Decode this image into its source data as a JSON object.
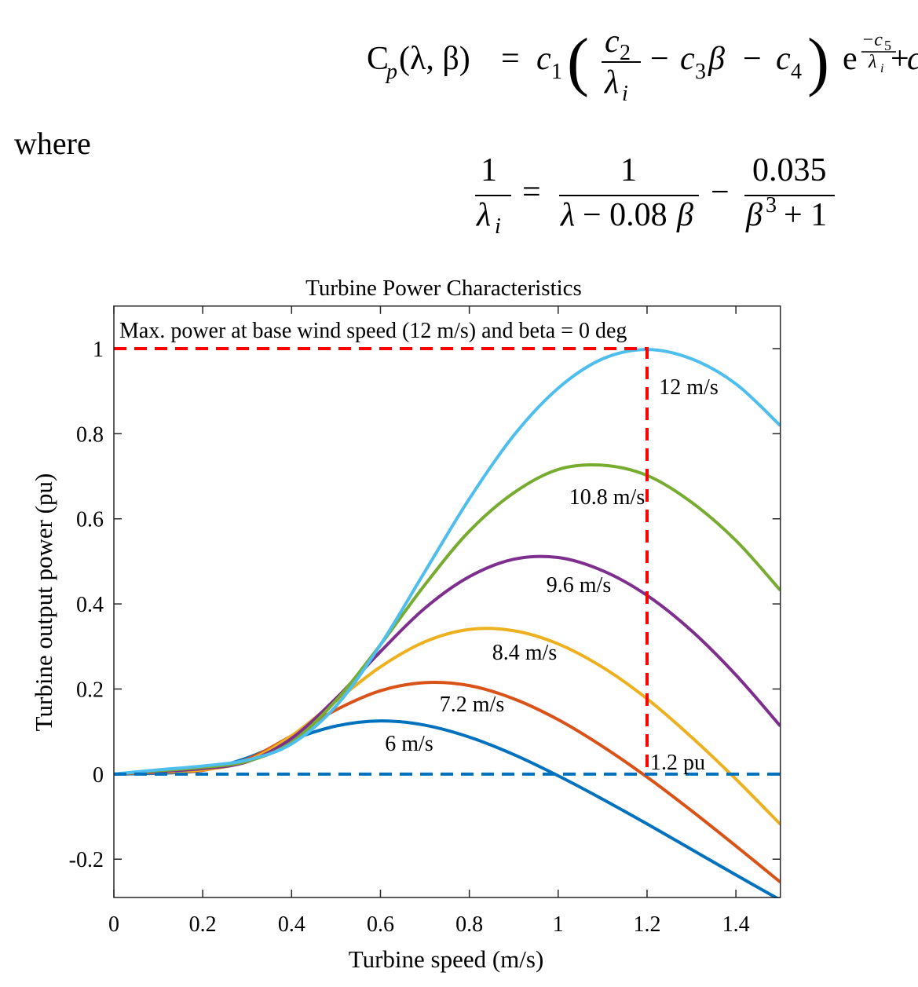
{
  "equation_1": {
    "parts": [
      "C",
      "p",
      "(λ, β)",
      "=",
      "c",
      "1",
      "(",
      "c",
      "2",
      "λ",
      "i",
      "−",
      "c",
      "3",
      "β",
      "−",
      "c",
      "4",
      ")",
      "e",
      "−c",
      "5",
      "λ",
      "i",
      "+",
      "c"
    ]
  },
  "where": "where",
  "equation_2": {
    "parts": [
      "1",
      "λ",
      "i",
      "=",
      "1",
      "λ",
      "− 0.08",
      "β",
      "−",
      "0.035",
      "β",
      "3",
      "+ 1"
    ]
  },
  "chart_data": {
    "type": "line",
    "title": "Turbine Power Characteristics",
    "x_label": "Turbine speed (m/s)",
    "y_label": "Turbine output power (pu)",
    "x": [
      0,
      0.1,
      0.2,
      0.3,
      0.4,
      0.5,
      0.6,
      0.7,
      0.8,
      0.9,
      1.0,
      1.1,
      1.2,
      1.3,
      1.4,
      1.5
    ],
    "series": [
      {
        "name": "6 m/s",
        "color": "#0072bd",
        "values": [
          0,
          0.002,
          0.009,
          0.038,
          0.081,
          0.113,
          0.125,
          0.115,
          0.087,
          0.046,
          -0.004,
          -0.059,
          -0.117,
          -0.177,
          -0.237,
          -0.296
        ]
      },
      {
        "name": "7.2 m/s",
        "color": "#d95319",
        "values": [
          0,
          0.004,
          0.009,
          0.035,
          0.09,
          0.151,
          0.196,
          0.215,
          0.208,
          0.177,
          0.128,
          0.065,
          -0.007,
          -0.086,
          -0.169,
          -0.254
        ]
      },
      {
        "name": "8.4 m/s",
        "color": "#edb120",
        "values": [
          0,
          0.005,
          0.01,
          0.031,
          0.09,
          0.172,
          0.252,
          0.311,
          0.34,
          0.337,
          0.306,
          0.251,
          0.177,
          0.087,
          -0.012,
          -0.118
        ]
      },
      {
        "name": "9.6 m/s",
        "color": "#7e2f8e",
        "values": [
          0,
          0.006,
          0.013,
          0.029,
          0.084,
          0.178,
          0.288,
          0.39,
          0.464,
          0.505,
          0.509,
          0.478,
          0.42,
          0.337,
          0.233,
          0.113
        ]
      },
      {
        "name": "10.8 m/s",
        "color": "#77ac30",
        "values": [
          0,
          0.008,
          0.016,
          0.03,
          0.075,
          0.173,
          0.304,
          0.445,
          0.571,
          0.661,
          0.716,
          0.726,
          0.702,
          0.639,
          0.549,
          0.432
        ]
      },
      {
        "name": "12 m/s",
        "color": "#4dbeee",
        "values": [
          0,
          0.01,
          0.019,
          0.033,
          0.071,
          0.16,
          0.304,
          0.476,
          0.647,
          0.796,
          0.907,
          0.976,
          0.998,
          0.976,
          0.917,
          0.819
        ]
      }
    ],
    "reference_lines": [
      {
        "color": "#ff0000",
        "dashed": true,
        "x": [
          0,
          1.2,
          1.2
        ],
        "values": [
          1,
          1,
          0
        ]
      },
      {
        "color": "#0072bd",
        "dashed": true,
        "x": [
          0,
          1.5
        ],
        "values": [
          0,
          0
        ]
      }
    ],
    "annotations": [
      "Max. power at base wind speed (12 m/s) and beta = 0 deg",
      "1.2 pu"
    ],
    "xlim": [
      0,
      1.5
    ],
    "ylim": [
      -0.29,
      1.1
    ],
    "xticks": [
      0,
      0.2,
      0.4,
      0.6,
      0.8,
      1,
      1.2,
      1.4
    ],
    "yticks": [
      -0.2,
      0,
      0.2,
      0.4,
      0.6,
      0.8,
      1
    ],
    "grid": false,
    "box": true
  }
}
